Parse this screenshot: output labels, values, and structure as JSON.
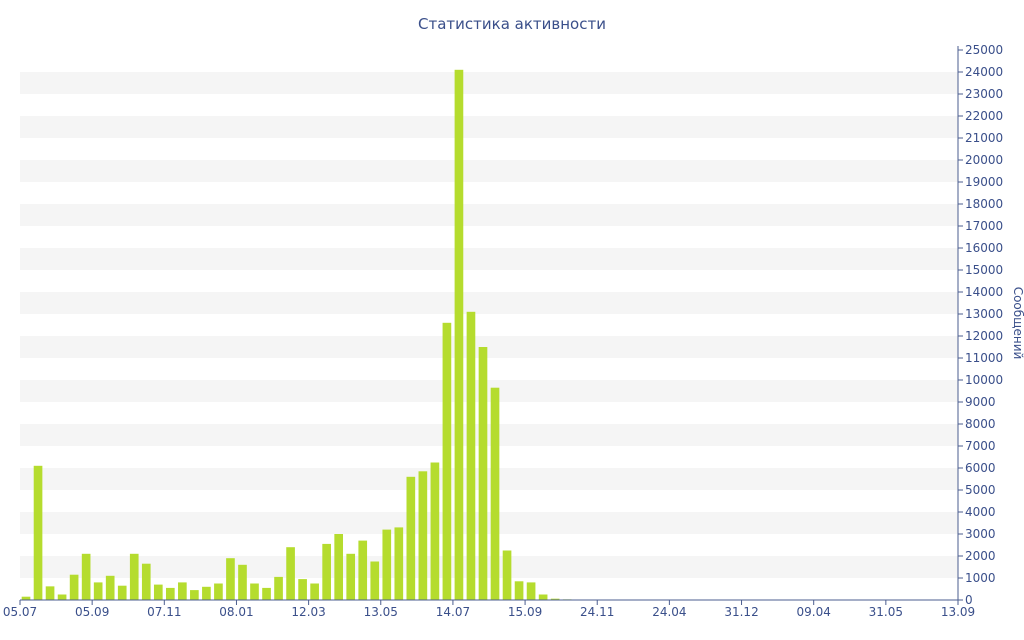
{
  "chart_data": {
    "type": "bar",
    "title": "Статистика активности",
    "ylabel": "Сообщений",
    "ylim": [
      0,
      25000
    ],
    "y_ticks": [
      0,
      1000,
      2000,
      3000,
      4000,
      5000,
      6000,
      7000,
      8000,
      9000,
      10000,
      11000,
      12000,
      13000,
      14000,
      15000,
      16000,
      17000,
      18000,
      19000,
      20000,
      21000,
      22000,
      23000,
      24000,
      25000
    ],
    "y_axis_side": "right",
    "grid": "alternating horizontal bands",
    "x_tick_labels": [
      "05.07",
      "05.09",
      "07.11",
      "08.01",
      "12.03",
      "13.05",
      "14.07",
      "15.09",
      "24.11",
      "24.04",
      "31.12",
      "09.04",
      "31.05",
      "13.09"
    ],
    "bar_color": "#b5dc2e",
    "values": [
      150,
      6100,
      620,
      250,
      1150,
      2100,
      800,
      1100,
      650,
      2100,
      1650,
      700,
      550,
      800,
      450,
      600,
      750,
      1900,
      1600,
      750,
      550,
      1050,
      2400,
      950,
      750,
      2550,
      3000,
      2100,
      2700,
      1750,
      3200,
      3300,
      5600,
      5850,
      6250,
      12600,
      24100,
      13100,
      11500,
      9650,
      2250,
      850,
      800,
      250,
      60,
      30,
      15,
      10,
      10,
      10,
      10,
      10,
      10,
      10,
      10,
      10,
      10,
      10,
      10,
      10,
      10,
      10,
      10,
      10,
      10,
      10,
      10,
      10,
      10,
      10,
      10,
      10,
      10,
      10,
      10,
      10,
      10,
      10
    ]
  }
}
